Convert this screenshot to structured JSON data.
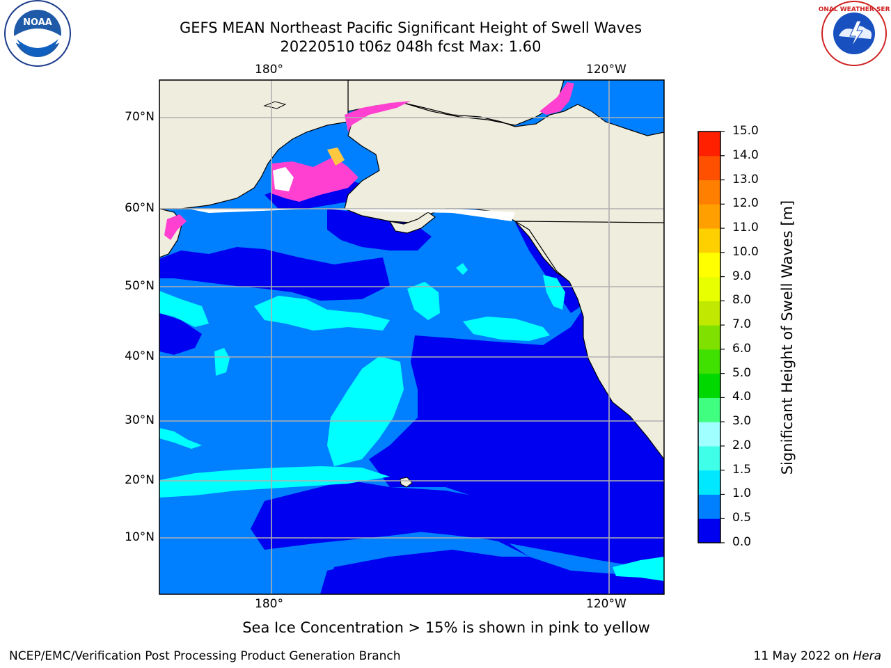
{
  "title": {
    "line1": "GEFS MEAN Northeast Pacific Significant Height of Swell Waves",
    "line2": "20220510 t06z 048h fcst   Max: 1.60"
  },
  "map": {
    "lon_labels_top": [
      "180°",
      "120°W"
    ],
    "lon_labels_bottom": [
      "180°",
      "120°W"
    ],
    "lat_labels": [
      "70°N",
      "60°N",
      "50°N",
      "40°N",
      "30°N",
      "20°N",
      "10°N"
    ],
    "colors": {
      "land": "#efedde",
      "ocean_low": "#0000f0",
      "ocean_mid": "#0080ff",
      "ocean_high": "#00ffff",
      "grid": "#b0b0b0",
      "sea_ice": "#ff40d0"
    }
  },
  "colorbar": {
    "label": "Significant Height of Swell Waves [m]",
    "ticks": [
      "0.0",
      "0.5",
      "1.0",
      "1.5",
      "2.0",
      "3.0",
      "4.0",
      "5.0",
      "6.0",
      "7.0",
      "8.0",
      "9.0",
      "10.0",
      "11.0",
      "12.0",
      "13.0",
      "14.0",
      "15.0"
    ],
    "colors": [
      "#0000f0",
      "#0080ff",
      "#00e8ff",
      "#40ffe8",
      "#a0ffff",
      "#40ff80",
      "#00d800",
      "#40e000",
      "#80e000",
      "#c0e800",
      "#e8ff00",
      "#ffff00",
      "#ffd000",
      "#ffa000",
      "#ff8000",
      "#ff5000",
      "#ff2000"
    ]
  },
  "footnote": "Sea Ice Concentration > 15% is shown in pink to yellow",
  "credits": {
    "left": "NCEP/EMC/Verification Post Processing Product Generation Branch",
    "right_prefix": "11 May 2022 on ",
    "right_host": "Hera"
  },
  "logos": {
    "left": "NOAA",
    "right": "NATIONAL WEATHER SERVICE"
  }
}
